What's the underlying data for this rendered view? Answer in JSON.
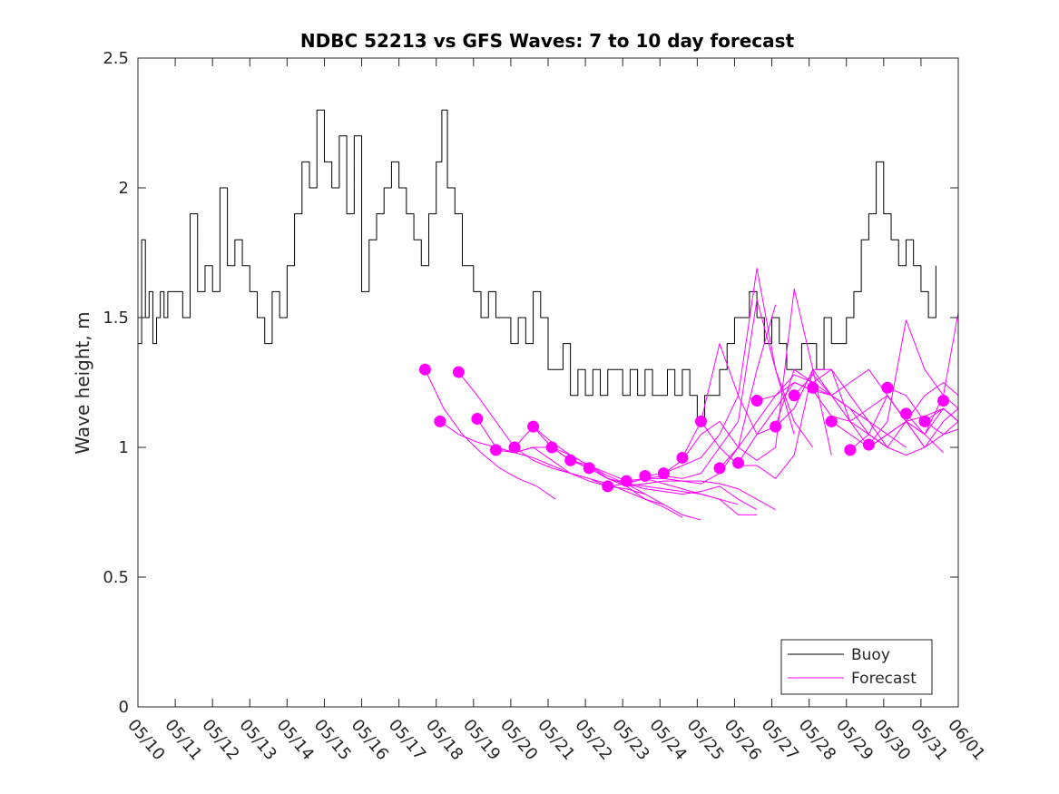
{
  "chart_data": {
    "type": "line",
    "title": "NDBC 52213 vs GFS Waves: 7 to 10 day forecast",
    "xlabel": "",
    "ylabel": "Wave height, m",
    "x_range": [
      "05/10",
      "06/01"
    ],
    "ylim": [
      0,
      2.5
    ],
    "y_ticks": [
      0,
      0.5,
      1,
      1.5,
      2,
      2.5
    ],
    "y_tick_labels": [
      "0",
      "0.5",
      "1",
      "1.5",
      "2",
      "2.5"
    ],
    "x_ticks": [
      0,
      1,
      2,
      3,
      4,
      5,
      6,
      7,
      8,
      9,
      10,
      11,
      12,
      13,
      14,
      15,
      16,
      17,
      18,
      19,
      20,
      21,
      22
    ],
    "x_tick_labels": [
      "05/10",
      "05/11",
      "05/12",
      "05/13",
      "05/14",
      "05/15",
      "05/16",
      "05/17",
      "05/18",
      "05/19",
      "05/20",
      "05/21",
      "05/22",
      "05/23",
      "05/24",
      "05/25",
      "05/26",
      "05/27",
      "05/28",
      "05/29",
      "05/30",
      "05/31",
      "06/01"
    ],
    "grid": false,
    "legend": {
      "position": "bottom-right",
      "entries": [
        {
          "label": "Buoy",
          "color": "#000000"
        },
        {
          "label": "Forecast",
          "color": "#ff00ff"
        }
      ]
    },
    "series": [
      {
        "name": "Buoy",
        "color": "#000000",
        "x": [
          0,
          0.1,
          0.2,
          0.3,
          0.4,
          0.5,
          0.6,
          0.7,
          0.8,
          0.9,
          1,
          1.2,
          1.4,
          1.6,
          1.8,
          2,
          2.2,
          2.4,
          2.6,
          2.8,
          3,
          3.2,
          3.4,
          3.6,
          3.8,
          4,
          4.2,
          4.4,
          4.6,
          4.8,
          5,
          5.2,
          5.4,
          5.6,
          5.8,
          6,
          6.2,
          6.4,
          6.6,
          6.8,
          7,
          7.2,
          7.4,
          7.6,
          7.8,
          8,
          8.15,
          8.3,
          8.5,
          8.7,
          9,
          9.2,
          9.4,
          9.6,
          9.8,
          10,
          10.2,
          10.4,
          10.6,
          10.8,
          11,
          11.2,
          11.4,
          11.6,
          11.8,
          12,
          12.2,
          12.4,
          12.6,
          12.8,
          13,
          13.2,
          13.4,
          13.6,
          13.8,
          14,
          14.2,
          14.4,
          14.6,
          14.8,
          15,
          15.2,
          15.4,
          15.6,
          15.8,
          16,
          16.2,
          16.4,
          16.6,
          16.8,
          17,
          17.2,
          17.4,
          17.6,
          17.8,
          18,
          18.2,
          18.4,
          18.6,
          18.8,
          19,
          19.2,
          19.4,
          19.6,
          19.8,
          20,
          20.2,
          20.4,
          20.6,
          20.8,
          21,
          21.2,
          21.4
        ],
        "y": [
          1.4,
          1.8,
          1.5,
          1.6,
          1.4,
          1.5,
          1.6,
          1.5,
          1.6,
          1.6,
          1.6,
          1.5,
          1.9,
          1.6,
          1.7,
          1.6,
          2.0,
          1.7,
          1.8,
          1.7,
          1.6,
          1.5,
          1.4,
          1.6,
          1.5,
          1.7,
          1.9,
          2.1,
          2.0,
          2.3,
          2.1,
          2.0,
          2.2,
          1.9,
          2.2,
          1.6,
          1.8,
          1.9,
          2.0,
          2.1,
          2.0,
          1.9,
          1.8,
          1.7,
          1.9,
          2.1,
          2.3,
          2.0,
          1.9,
          1.7,
          1.6,
          1.5,
          1.6,
          1.5,
          1.5,
          1.4,
          1.5,
          1.4,
          1.6,
          1.5,
          1.3,
          1.3,
          1.4,
          1.2,
          1.3,
          1.2,
          1.3,
          1.2,
          1.3,
          1.3,
          1.2,
          1.3,
          1.2,
          1.3,
          1.2,
          1.2,
          1.3,
          1.2,
          1.3,
          1.2,
          1.1,
          1.2,
          1.2,
          1.3,
          1.4,
          1.5,
          1.5,
          1.6,
          1.5,
          1.4,
          1.5,
          1.4,
          1.3,
          1.3,
          1.4,
          1.4,
          1.3,
          1.5,
          1.4,
          1.4,
          1.5,
          1.6,
          1.8,
          1.9,
          2.1,
          1.9,
          1.8,
          1.7,
          1.8,
          1.7,
          1.6,
          1.5,
          1.7
        ]
      },
      {
        "name": "Forecast",
        "color": "#ff00ff",
        "x": [
          7.7,
          8.2,
          8.7,
          9.2,
          9.7,
          10.2,
          10.7,
          11.2
        ],
        "y": [
          1.3,
          1.15,
          1.05,
          0.98,
          0.92,
          0.88,
          0.85,
          0.8
        ]
      },
      {
        "name": "Forecast",
        "color": "#ff00ff",
        "x": [
          8.1,
          8.6,
          9.1,
          9.6,
          10.1,
          10.6,
          11.1,
          11.6,
          12.1,
          12.6
        ],
        "y": [
          1.1,
          1.05,
          1.02,
          1.0,
          0.98,
          1.0,
          0.95,
          0.9,
          0.87,
          0.85
        ]
      },
      {
        "name": "Forecast",
        "color": "#ff00ff",
        "x": [
          8.6,
          9.1,
          9.6,
          10.1,
          10.6,
          11.1,
          11.6,
          12.1,
          12.6,
          13.1,
          13.6
        ],
        "y": [
          1.29,
          1.2,
          1.1,
          1.0,
          0.95,
          0.92,
          0.9,
          0.88,
          0.85,
          0.84,
          0.82
        ]
      },
      {
        "name": "Forecast",
        "color": "#ff00ff",
        "x": [
          9.1,
          9.6,
          10.1,
          10.6,
          11.1,
          11.6,
          12.1,
          12.6,
          13.1,
          13.6,
          14.1
        ],
        "y": [
          1.11,
          1.0,
          0.98,
          0.96,
          0.93,
          0.9,
          0.88,
          0.86,
          0.83,
          0.8,
          0.78
        ]
      },
      {
        "name": "Forecast",
        "color": "#ff00ff",
        "x": [
          9.6,
          10.1,
          10.6,
          11.1,
          11.6,
          12.1,
          12.6,
          13.1,
          13.6,
          14.1,
          14.6
        ],
        "y": [
          0.99,
          0.98,
          1.0,
          1.0,
          0.95,
          0.92,
          0.88,
          0.85,
          0.8,
          0.77,
          0.73
        ]
      },
      {
        "name": "Forecast",
        "color": "#ff00ff",
        "x": [
          10.1,
          10.6,
          11.1,
          11.6,
          12.1,
          12.6,
          13.1,
          13.6,
          14.1,
          14.6,
          15.1
        ],
        "y": [
          1.0,
          1.08,
          1.02,
          0.97,
          0.93,
          0.89,
          0.86,
          0.82,
          0.78,
          0.74,
          0.72
        ]
      },
      {
        "name": "Forecast",
        "color": "#ff00ff",
        "x": [
          10.6,
          11.1,
          11.6,
          12.1,
          12.6,
          13.1,
          13.6,
          14.1,
          14.6,
          15.1,
          15.6,
          16.1
        ],
        "y": [
          1.08,
          1.0,
          0.97,
          0.93,
          0.9,
          0.87,
          0.88,
          0.86,
          0.84,
          0.82,
          0.8,
          0.78
        ]
      },
      {
        "name": "Forecast",
        "color": "#ff00ff",
        "x": [
          11.1,
          11.6,
          12.1,
          12.6,
          13.1,
          13.6,
          14.1,
          14.6,
          15.1,
          15.6,
          16.1,
          16.6
        ],
        "y": [
          1.0,
          0.95,
          0.92,
          0.88,
          0.86,
          0.85,
          0.84,
          0.83,
          0.82,
          0.8,
          0.74,
          0.74
        ]
      },
      {
        "name": "Forecast",
        "color": "#ff00ff",
        "x": [
          11.6,
          12.1,
          12.6,
          13.1,
          13.6,
          14.1,
          14.6,
          15.1,
          15.6,
          16.1,
          16.6
        ],
        "y": [
          0.95,
          0.93,
          0.88,
          0.86,
          0.84,
          0.83,
          0.82,
          0.83,
          0.85,
          0.8,
          0.76
        ]
      },
      {
        "name": "Forecast",
        "color": "#ff00ff",
        "x": [
          12.1,
          12.6,
          13.1,
          13.6,
          14.1,
          14.6,
          15.1,
          15.6,
          16.1,
          16.6,
          17.1
        ],
        "y": [
          0.92,
          0.88,
          0.85,
          0.86,
          0.87,
          0.87,
          0.87,
          0.86,
          0.84,
          0.8,
          0.76
        ]
      },
      {
        "name": "Forecast",
        "color": "#ff00ff",
        "x": [
          12.6,
          13.1,
          13.6,
          14.1,
          14.6,
          15.1,
          15.6,
          16.1,
          16.6,
          17.1
        ],
        "y": [
          0.85,
          0.86,
          0.88,
          0.88,
          0.87,
          0.86,
          0.9,
          1.0,
          1.3,
          1.55
        ]
      },
      {
        "name": "Forecast",
        "color": "#ff00ff",
        "x": [
          13.1,
          13.6,
          14.1,
          14.6,
          15.1,
          15.6,
          16.1,
          16.6,
          17.1,
          17.6
        ],
        "y": [
          0.87,
          0.88,
          0.89,
          0.88,
          0.9,
          1.0,
          1.1,
          1.57,
          1.3,
          1.05
        ]
      },
      {
        "name": "Forecast",
        "color": "#ff00ff",
        "x": [
          13.6,
          14.1,
          14.6,
          15.1,
          15.6,
          16.1,
          16.6,
          17.1,
          17.6,
          18.1
        ],
        "y": [
          0.89,
          0.9,
          0.93,
          0.96,
          1.05,
          1.2,
          1.69,
          1.3,
          1.1,
          1.0
        ]
      },
      {
        "name": "Forecast",
        "color": "#ff00ff",
        "x": [
          14.1,
          14.6,
          15.1,
          15.6,
          16.1,
          16.6,
          17.1,
          17.6,
          18.1,
          18.6
        ],
        "y": [
          0.9,
          0.95,
          1.05,
          1.1,
          1.0,
          0.95,
          1.0,
          1.61,
          1.3,
          0.97
        ]
      },
      {
        "name": "Forecast",
        "color": "#ff00ff",
        "x": [
          14.6,
          15.1,
          15.6,
          16.1,
          16.6,
          17.1,
          17.6,
          18.1,
          18.6,
          19.1,
          19.6
        ],
        "y": [
          0.96,
          1.1,
          1.4,
          1.2,
          1.05,
          1.08,
          1.3,
          1.25,
          1.2,
          1.15,
          1.1
        ]
      },
      {
        "name": "Forecast",
        "color": "#ff00ff",
        "x": [
          15.1,
          15.6,
          16.1,
          16.6,
          17.1,
          17.6,
          18.1,
          18.6,
          19.1,
          19.6,
          20.1
        ],
        "y": [
          1.1,
          1.0,
          0.93,
          0.93,
          0.88,
          0.97,
          1.3,
          1.3,
          1.1,
          1.05,
          1.0
        ]
      },
      {
        "name": "Forecast",
        "color": "#ff00ff",
        "x": [
          15.6,
          16.1,
          16.6,
          17.1,
          17.6,
          18.1,
          18.6,
          19.1,
          19.6,
          20.1,
          20.6
        ],
        "y": [
          0.92,
          1.0,
          1.1,
          1.2,
          1.28,
          1.25,
          1.3,
          1.2,
          1.1,
          1.05,
          1.0
        ]
      },
      {
        "name": "Forecast",
        "color": "#ff00ff",
        "x": [
          16.1,
          16.6,
          17.1,
          17.6,
          18.1,
          18.6,
          19.1,
          19.6,
          20.1,
          20.6,
          21.1
        ],
        "y": [
          0.94,
          1.05,
          1.15,
          1.25,
          1.22,
          1.2,
          1.25,
          1.3,
          1.2,
          1.1,
          1.0
        ]
      },
      {
        "name": "Forecast",
        "color": "#ff00ff",
        "x": [
          16.6,
          17.1,
          17.6,
          18.1,
          18.6,
          19.1,
          19.6,
          20.1,
          20.6,
          21.1,
          21.6
        ],
        "y": [
          1.18,
          1.2,
          1.25,
          1.22,
          1.12,
          1.1,
          1.15,
          1.2,
          1.1,
          1.05,
          0.98
        ]
      },
      {
        "name": "Forecast",
        "color": "#ff00ff",
        "x": [
          17.1,
          17.6,
          18.1,
          18.6,
          19.1,
          19.6,
          20.1,
          20.6,
          21.1,
          21.6,
          22.0
        ],
        "y": [
          1.08,
          1.15,
          1.3,
          1.2,
          1.15,
          1.1,
          1.0,
          0.97,
          1.0,
          1.1,
          1.15
        ]
      },
      {
        "name": "Forecast",
        "color": "#ff00ff",
        "x": [
          17.6,
          18.1,
          18.6,
          19.1,
          19.6,
          20.1,
          20.6,
          21.1,
          21.6,
          22.0
        ],
        "y": [
          1.2,
          1.28,
          1.2,
          1.15,
          1.05,
          1.0,
          1.1,
          1.0,
          1.05,
          1.1
        ]
      },
      {
        "name": "Forecast",
        "color": "#ff00ff",
        "x": [
          18.1,
          18.6,
          19.1,
          19.6,
          20.1,
          20.6,
          21.1,
          21.6,
          22.0
        ],
        "y": [
          1.23,
          1.2,
          1.1,
          1.0,
          1.05,
          1.1,
          1.2,
          1.25,
          1.2
        ]
      },
      {
        "name": "Forecast",
        "color": "#ff00ff",
        "x": [
          18.6,
          19.1,
          19.6,
          20.1,
          20.6,
          21.1,
          21.6,
          22.0
        ],
        "y": [
          1.1,
          1.05,
          1.0,
          1.05,
          1.1,
          1.12,
          1.15,
          1.1
        ]
      },
      {
        "name": "Forecast",
        "color": "#ff00ff",
        "x": [
          19.1,
          19.6,
          20.1,
          20.6,
          21.1,
          21.6,
          22.0
        ],
        "y": [
          0.99,
          1.05,
          1.2,
          1.1,
          1.05,
          1.15,
          1.1
        ]
      },
      {
        "name": "Forecast",
        "color": "#ff00ff",
        "x": [
          19.6,
          20.1,
          20.6,
          21.1,
          21.6,
          22.0
        ],
        "y": [
          1.01,
          1.1,
          1.49,
          1.3,
          1.2,
          1.15
        ]
      },
      {
        "name": "Forecast",
        "color": "#ff00ff",
        "x": [
          20.1,
          20.6,
          21.1,
          21.6,
          22.0
        ],
        "y": [
          1.23,
          1.2,
          1.1,
          1.05,
          1.07
        ]
      },
      {
        "name": "Forecast",
        "color": "#ff00ff",
        "x": [
          20.6,
          21.1,
          21.6,
          22.0
        ],
        "y": [
          1.13,
          1.05,
          1.2,
          1.52
        ]
      },
      {
        "name": "Forecast",
        "color": "#ff00ff",
        "x": [
          21.1,
          21.6,
          22.0
        ],
        "y": [
          1.1,
          1.15,
          1.1
        ]
      }
    ],
    "forecast_markers": {
      "color": "#ff00ff",
      "x": [
        7.7,
        8.1,
        8.6,
        9.1,
        9.6,
        10.1,
        10.6,
        11.1,
        11.6,
        12.1,
        12.6,
        13.1,
        13.6,
        14.1,
        14.6,
        15.1,
        15.6,
        16.1,
        16.6,
        17.1,
        17.6,
        18.1,
        18.6,
        19.1,
        19.6,
        20.1,
        20.6,
        21.1,
        21.6
      ],
      "y": [
        1.3,
        1.1,
        1.29,
        1.11,
        0.99,
        1.0,
        1.08,
        1.0,
        0.95,
        0.92,
        0.85,
        0.87,
        0.89,
        0.9,
        0.96,
        1.1,
        0.92,
        0.94,
        1.18,
        1.08,
        1.2,
        1.23,
        1.1,
        0.99,
        1.01,
        1.23,
        1.13,
        1.1,
        1.18
      ]
    }
  }
}
